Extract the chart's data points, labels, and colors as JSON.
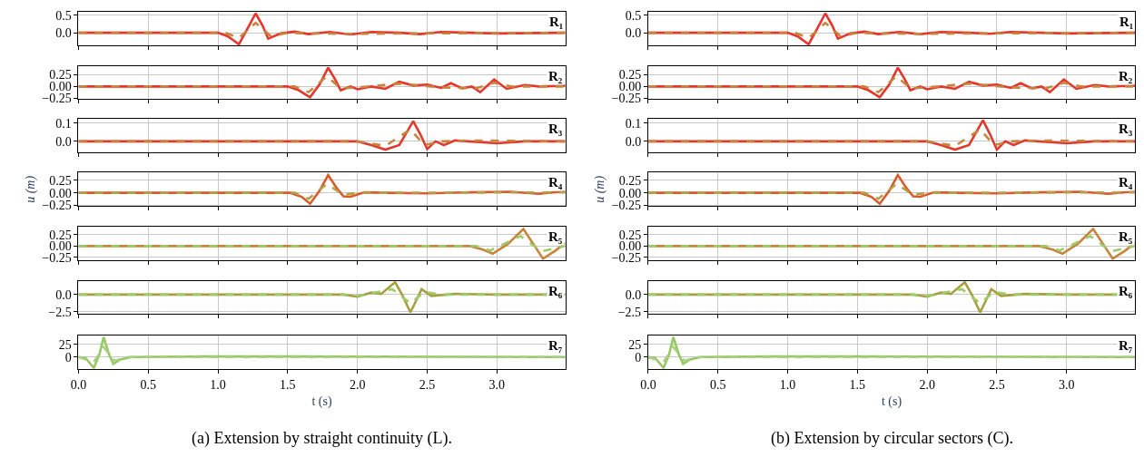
{
  "chart_data": [
    {
      "type": "line",
      "annotations": [
        "R₁"
      ],
      "xlim": [
        0,
        3.49
      ],
      "xticks": [
        0.0,
        0.5,
        1.0,
        1.5,
        2.0,
        2.5,
        3.0
      ],
      "ylim": [
        -0.36,
        0.6
      ],
      "yticks": [
        {
          "value": 0,
          "label": "0.0"
        },
        0.5
      ],
      "grid": true,
      "tick_labels": "y",
      "series": [
        {
          "color": "#e8352a",
          "line_style": "solid",
          "x": [
            0,
            1.0,
            1.07,
            1.15,
            1.21,
            1.27,
            1.32,
            1.36,
            1.45,
            1.55,
            1.65,
            1.8,
            1.95,
            2.1,
            2.3,
            2.45,
            2.6,
            3.0,
            3.49
          ],
          "values": [
            0,
            0,
            -0.1,
            -0.33,
            0.1,
            0.55,
            0.2,
            -0.17,
            -0.02,
            0.03,
            -0.04,
            0.02,
            -0.05,
            0.02,
            0.0,
            -0.04,
            0.02,
            -0.02,
            0
          ]
        },
        {
          "color": "#c8843c",
          "line_style": "dashed",
          "x": [
            0,
            1.05,
            1.15,
            1.27,
            1.38,
            1.5,
            1.65,
            1.95,
            2.45,
            3.49
          ],
          "values": [
            0,
            0,
            -0.15,
            0.28,
            -0.1,
            0,
            -0.02,
            -0.03,
            -0.02,
            0
          ]
        }
      ]
    },
    {
      "type": "line",
      "annotations": [
        "R₂"
      ],
      "xlim": [
        0,
        3.49
      ],
      "xticks": [
        0.0,
        0.5,
        1.0,
        1.5,
        2.0,
        2.5,
        3.0
      ],
      "ylim": [
        -0.26,
        0.44
      ],
      "yticks": [
        {
          "value": -0.25,
          "label": "−0.25"
        },
        {
          "value": 0,
          "label": "0.00"
        },
        0.25
      ],
      "grid": true,
      "tick_labels": "y",
      "series": [
        {
          "color": "#e8352a",
          "line_style": "solid",
          "x": [
            0,
            1.5,
            1.58,
            1.66,
            1.73,
            1.79,
            1.84,
            1.88,
            1.95,
            2.0,
            2.1,
            2.2,
            2.3,
            2.4,
            2.5,
            2.6,
            2.67,
            2.75,
            2.82,
            2.88,
            2.98,
            3.07,
            3.2,
            3.3,
            3.49
          ],
          "values": [
            0,
            0,
            -0.08,
            -0.23,
            0.05,
            0.4,
            0.15,
            -0.08,
            0.0,
            -0.06,
            0.0,
            -0.05,
            0.1,
            0.02,
            0.04,
            -0.03,
            0.07,
            -0.04,
            0.0,
            -0.12,
            0.15,
            -0.05,
            0.03,
            0.0,
            0.02
          ]
        },
        {
          "color": "#c8843c",
          "line_style": "dashed",
          "x": [
            0,
            1.55,
            1.65,
            1.78,
            1.88,
            2.0,
            2.3,
            2.6,
            2.85,
            2.98,
            3.1,
            3.49
          ],
          "values": [
            0,
            0,
            -0.12,
            0.22,
            -0.04,
            -0.02,
            0.06,
            -0.02,
            -0.04,
            0.08,
            0.0,
            0.0
          ]
        }
      ]
    },
    {
      "type": "line",
      "annotations": [
        "R₃"
      ],
      "xlim": [
        0,
        3.49
      ],
      "xticks": [
        0.0,
        0.5,
        1.0,
        1.5,
        2.0,
        2.5,
        3.0
      ],
      "ylim": [
        -0.058,
        0.121
      ],
      "yticks": [
        {
          "value": 0,
          "label": "0.0"
        },
        0.1
      ],
      "grid": true,
      "tick_labels": "y",
      "series": [
        {
          "color": "#e03a2c",
          "line_style": "solid",
          "x": [
            0,
            2.0,
            2.1,
            2.2,
            2.3,
            2.4,
            2.45,
            2.5,
            2.56,
            2.62,
            2.7,
            3.0,
            3.2,
            3.49
          ],
          "values": [
            0,
            0,
            -0.02,
            -0.045,
            -0.02,
            0.11,
            0.04,
            -0.042,
            0.0,
            -0.02,
            0.005,
            -0.01,
            0.0,
            0.0
          ]
        },
        {
          "color": "#c8843c",
          "line_style": "dashed",
          "x": [
            0,
            2.0,
            2.2,
            2.38,
            2.48,
            2.6,
            2.8,
            3.49
          ],
          "values": [
            0,
            0,
            -0.025,
            0.065,
            -0.02,
            0,
            0.005,
            0
          ]
        }
      ]
    },
    {
      "type": "line",
      "ylabel": "u (m)",
      "annotations": [
        "R₄"
      ],
      "xlim": [
        0,
        3.49
      ],
      "xticks": [
        0.0,
        0.5,
        1.0,
        1.5,
        2.0,
        2.5,
        3.0
      ],
      "ylim": [
        -0.27,
        0.41
      ],
      "yticks": [
        {
          "value": -0.25,
          "label": "−0.25"
        },
        {
          "value": 0,
          "label": "0.00"
        },
        0.25
      ],
      "grid": true,
      "tick_labels": "y",
      "series": [
        {
          "color": "#d95a2a",
          "line_style": "solid",
          "x": [
            0,
            1.52,
            1.6,
            1.66,
            1.73,
            1.79,
            1.85,
            1.9,
            1.95,
            2.05,
            2.2,
            2.5,
            2.8,
            3.1,
            3.3,
            3.49
          ],
          "values": [
            0,
            0,
            -0.08,
            -0.22,
            0.05,
            0.36,
            0.1,
            -0.07,
            -0.08,
            0.01,
            0.0,
            -0.01,
            0.01,
            0.02,
            -0.02,
            0.03
          ]
        },
        {
          "color": "#b5a04a",
          "line_style": "dashed",
          "x": [
            0,
            1.55,
            1.65,
            1.78,
            1.9,
            2.0,
            3.49
          ],
          "values": [
            0,
            0,
            -0.12,
            0.18,
            -0.04,
            0,
            0.01
          ]
        }
      ]
    },
    {
      "type": "line",
      "annotations": [
        "R₅"
      ],
      "xlim": [
        0,
        3.49
      ],
      "xticks": [
        0.0,
        0.5,
        1.0,
        1.5,
        2.0,
        2.5,
        3.0
      ],
      "ylim": [
        -0.32,
        0.43
      ],
      "yticks": [
        {
          "value": -0.25,
          "label": "−0.25"
        },
        {
          "value": 0,
          "label": "0.00"
        },
        0.25
      ],
      "grid": true,
      "tick_labels": "y",
      "series": [
        {
          "color": "#c8843c",
          "line_style": "solid",
          "x": [
            0,
            2.8,
            2.9,
            2.97,
            3.08,
            3.19,
            3.26,
            3.33,
            3.42,
            3.49
          ],
          "values": [
            0,
            0,
            -0.08,
            -0.17,
            0.05,
            0.38,
            0.05,
            -0.28,
            -0.1,
            0.07
          ]
        },
        {
          "color": "#9ccc65",
          "line_style": "dashed",
          "x": [
            0,
            2.85,
            2.95,
            3.17,
            3.32,
            3.49
          ],
          "values": [
            0,
            0,
            -0.1,
            0.22,
            -0.12,
            0.0
          ]
        }
      ]
    },
    {
      "type": "line",
      "annotations": [
        "R₆"
      ],
      "xlim": [
        0,
        3.49
      ],
      "xticks": [
        0.0,
        0.5,
        1.0,
        1.5,
        2.0,
        2.5,
        3.0
      ],
      "ylim": [
        -2.8,
        2.0
      ],
      "yticks": [
        {
          "value": -2.5,
          "label": "−2.5"
        },
        {
          "value": 0,
          "label": "0.0"
        }
      ],
      "grid": true,
      "tick_labels": "y",
      "series": [
        {
          "color": "#a8a040",
          "line_style": "solid",
          "x": [
            0,
            1.9,
            2.0,
            2.1,
            2.17,
            2.27,
            2.32,
            2.38,
            2.46,
            2.53,
            2.7,
            3.0,
            3.49
          ],
          "values": [
            0,
            0,
            -0.3,
            0.3,
            0.1,
            1.8,
            0.0,
            -2.6,
            0.8,
            -0.2,
            0.1,
            0.0,
            0.0
          ]
        },
        {
          "color": "#9ccc65",
          "line_style": "dashed",
          "x": [
            0,
            1.9,
            2.0,
            2.1,
            2.25,
            2.38,
            2.48,
            2.6,
            3.49
          ],
          "values": [
            0,
            0,
            -0.2,
            0.2,
            0.8,
            -1.3,
            0.4,
            0,
            0
          ]
        }
      ]
    },
    {
      "type": "line",
      "xlabel": "t (s)",
      "annotations": [
        "R₇",
        "(a) Extension by straight continuity (L)."
      ],
      "xlim": [
        0,
        3.49
      ],
      "xticks": [
        {
          "value": 0,
          "label": "0.0"
        },
        0.5,
        {
          "value": 1,
          "label": "1.0"
        },
        1.5,
        {
          "value": 2,
          "label": "2.0"
        },
        2.5,
        {
          "value": 3,
          "label": "3.0"
        }
      ],
      "ylim": [
        -24,
        44
      ],
      "yticks": [
        0,
        25
      ],
      "grid": true,
      "series": [
        {
          "color": "#96c864",
          "line_style": "solid",
          "x": [
            0,
            0.05,
            0.11,
            0.15,
            0.18,
            0.22,
            0.25,
            0.3,
            0.38,
            0.9,
            1.5,
            3.49
          ],
          "values": [
            0,
            -2,
            -22,
            5,
            40,
            5,
            -14,
            -5,
            0,
            1,
            1,
            0
          ]
        },
        {
          "color": "#a8d080",
          "line_style": "dashed",
          "x": [
            0,
            0.11,
            0.18,
            0.26,
            0.35,
            3.49
          ],
          "values": [
            0,
            -10,
            20,
            -8,
            0,
            0
          ]
        }
      ]
    },
    {
      "type": "line",
      "annotations": [
        "R₁"
      ],
      "xlim": [
        0,
        3.49
      ],
      "xticks": [
        0.0,
        0.5,
        1.0,
        1.5,
        2.0,
        2.5,
        3.0
      ],
      "ylim": [
        -0.36,
        0.6
      ],
      "yticks": [
        {
          "value": 0,
          "label": "0.0"
        },
        0.5
      ],
      "grid": true,
      "tick_labels": "y",
      "series": [
        {
          "color": "#e8352a",
          "line_style": "solid",
          "x": [
            0,
            1.0,
            1.07,
            1.15,
            1.21,
            1.27,
            1.32,
            1.36,
            1.45,
            1.55,
            1.65,
            1.8,
            1.95,
            2.1,
            2.3,
            2.45,
            2.6,
            3.0,
            3.49
          ],
          "values": [
            0,
            0,
            -0.1,
            -0.33,
            0.1,
            0.55,
            0.2,
            -0.17,
            -0.02,
            0.03,
            -0.04,
            0.02,
            -0.04,
            0.02,
            0.0,
            -0.03,
            0.02,
            -0.02,
            0
          ]
        },
        {
          "color": "#c8843c",
          "line_style": "dashed",
          "x": [
            0,
            1.05,
            1.15,
            1.27,
            1.38,
            1.5,
            1.65,
            1.95,
            2.45,
            3.49
          ],
          "values": [
            0,
            0,
            -0.15,
            0.28,
            -0.1,
            0,
            -0.02,
            -0.03,
            -0.02,
            0
          ]
        }
      ]
    },
    {
      "type": "line",
      "annotations": [
        "R₂"
      ],
      "xlim": [
        0,
        3.49
      ],
      "xticks": [
        0.0,
        0.5,
        1.0,
        1.5,
        2.0,
        2.5,
        3.0
      ],
      "ylim": [
        -0.26,
        0.44
      ],
      "yticks": [
        {
          "value": -0.25,
          "label": "−0.25"
        },
        {
          "value": 0,
          "label": "0.00"
        },
        0.25
      ],
      "grid": true,
      "tick_labels": "y",
      "series": [
        {
          "color": "#e8352a",
          "line_style": "solid",
          "x": [
            0,
            1.5,
            1.58,
            1.66,
            1.73,
            1.79,
            1.84,
            1.88,
            1.95,
            2.0,
            2.1,
            2.2,
            2.3,
            2.4,
            2.5,
            2.6,
            2.67,
            2.75,
            2.82,
            2.88,
            2.98,
            3.07,
            3.2,
            3.3,
            3.49
          ],
          "values": [
            0,
            0,
            -0.08,
            -0.23,
            0.05,
            0.4,
            0.15,
            -0.08,
            0.0,
            -0.06,
            0.0,
            -0.05,
            0.1,
            0.02,
            0.04,
            -0.03,
            0.07,
            -0.04,
            0.0,
            -0.12,
            0.15,
            -0.05,
            0.03,
            0.0,
            0.02
          ]
        },
        {
          "color": "#c8843c",
          "line_style": "dashed",
          "x": [
            0,
            1.55,
            1.65,
            1.78,
            1.88,
            2.0,
            2.3,
            2.6,
            2.85,
            2.98,
            3.1,
            3.49
          ],
          "values": [
            0,
            0,
            -0.12,
            0.22,
            -0.04,
            -0.02,
            0.06,
            -0.02,
            -0.04,
            0.08,
            0.0,
            0.0
          ]
        }
      ]
    },
    {
      "type": "line",
      "annotations": [
        "R₃"
      ],
      "xlim": [
        0,
        3.49
      ],
      "xticks": [
        0.0,
        0.5,
        1.0,
        1.5,
        2.0,
        2.5,
        3.0
      ],
      "ylim": [
        -0.058,
        0.121
      ],
      "yticks": [
        {
          "value": 0,
          "label": "0.0"
        },
        0.1
      ],
      "grid": true,
      "tick_labels": "y",
      "series": [
        {
          "color": "#e03a2c",
          "line_style": "solid",
          "x": [
            0,
            2.0,
            2.1,
            2.2,
            2.3,
            2.4,
            2.45,
            2.5,
            2.56,
            2.62,
            2.7,
            3.0,
            3.2,
            3.49
          ],
          "values": [
            0,
            0,
            -0.02,
            -0.045,
            -0.02,
            0.115,
            0.04,
            -0.045,
            0.0,
            -0.02,
            0.005,
            -0.01,
            0.0,
            0.0
          ]
        },
        {
          "color": "#c8843c",
          "line_style": "dashed",
          "x": [
            0,
            2.0,
            2.2,
            2.38,
            2.48,
            2.6,
            2.8,
            3.49
          ],
          "values": [
            0,
            0,
            -0.025,
            0.065,
            -0.02,
            0,
            0.005,
            0
          ]
        }
      ]
    },
    {
      "type": "line",
      "ylabel": "u (m)",
      "annotations": [
        "R₄"
      ],
      "xlim": [
        0,
        3.49
      ],
      "xticks": [
        0.0,
        0.5,
        1.0,
        1.5,
        2.0,
        2.5,
        3.0
      ],
      "ylim": [
        -0.27,
        0.41
      ],
      "yticks": [
        {
          "value": -0.25,
          "label": "−0.25"
        },
        {
          "value": 0,
          "label": "0.00"
        },
        0.25
      ],
      "grid": true,
      "tick_labels": "y",
      "series": [
        {
          "color": "#d95a2a",
          "line_style": "solid",
          "x": [
            0,
            1.52,
            1.6,
            1.66,
            1.73,
            1.79,
            1.85,
            1.9,
            1.95,
            2.05,
            2.2,
            2.5,
            2.8,
            3.1,
            3.3,
            3.49
          ],
          "values": [
            0,
            0,
            -0.08,
            -0.22,
            0.05,
            0.36,
            0.1,
            -0.07,
            -0.08,
            0.01,
            0.0,
            -0.01,
            0.01,
            0.02,
            -0.02,
            0.03
          ]
        },
        {
          "color": "#b5a04a",
          "line_style": "dashed",
          "x": [
            0,
            1.55,
            1.65,
            1.78,
            1.9,
            2.0,
            3.49
          ],
          "values": [
            0,
            0,
            -0.12,
            0.18,
            -0.04,
            0,
            0.01
          ]
        }
      ]
    },
    {
      "type": "line",
      "annotations": [
        "R₅"
      ],
      "xlim": [
        0,
        3.49
      ],
      "xticks": [
        0.0,
        0.5,
        1.0,
        1.5,
        2.0,
        2.5,
        3.0
      ],
      "ylim": [
        -0.32,
        0.43
      ],
      "yticks": [
        {
          "value": -0.25,
          "label": "−0.25"
        },
        {
          "value": 0,
          "label": "0.00"
        },
        0.25
      ],
      "grid": true,
      "tick_labels": "y",
      "series": [
        {
          "color": "#c8843c",
          "line_style": "solid",
          "x": [
            0,
            2.8,
            2.9,
            2.97,
            3.08,
            3.19,
            3.26,
            3.33,
            3.42,
            3.49
          ],
          "values": [
            0,
            0,
            -0.08,
            -0.17,
            0.05,
            0.38,
            0.05,
            -0.28,
            -0.1,
            0.07
          ]
        },
        {
          "color": "#9ccc65",
          "line_style": "dashed",
          "x": [
            0,
            2.85,
            2.95,
            3.17,
            3.32,
            3.49
          ],
          "values": [
            0,
            0,
            -0.1,
            0.22,
            -0.12,
            0.0
          ]
        }
      ]
    },
    {
      "type": "line",
      "annotations": [
        "R₆"
      ],
      "xlim": [
        0,
        3.49
      ],
      "xticks": [
        0.0,
        0.5,
        1.0,
        1.5,
        2.0,
        2.5,
        3.0
      ],
      "ylim": [
        -2.8,
        2.0
      ],
      "yticks": [
        {
          "value": -2.5,
          "label": "−2.5"
        },
        {
          "value": 0,
          "label": "0.0"
        }
      ],
      "grid": true,
      "tick_labels": "y",
      "series": [
        {
          "color": "#a8a040",
          "line_style": "solid",
          "x": [
            0,
            1.9,
            2.0,
            2.1,
            2.17,
            2.27,
            2.32,
            2.38,
            2.46,
            2.53,
            2.7,
            3.0,
            3.49
          ],
          "values": [
            0,
            0,
            -0.3,
            0.3,
            0.1,
            1.8,
            0.0,
            -2.6,
            0.8,
            -0.2,
            0.1,
            0.0,
            0.0
          ]
        },
        {
          "color": "#9ccc65",
          "line_style": "dashed",
          "x": [
            0,
            1.9,
            2.0,
            2.1,
            2.25,
            2.38,
            2.48,
            2.6,
            3.49
          ],
          "values": [
            0,
            0,
            -0.2,
            0.2,
            0.8,
            -1.3,
            0.4,
            0,
            0
          ]
        }
      ]
    },
    {
      "type": "line",
      "xlabel": "t (s)",
      "annotations": [
        "R₇",
        "(b) Extension by circular sectors (C)."
      ],
      "xlim": [
        0,
        3.49
      ],
      "xticks": [
        {
          "value": 0,
          "label": "0.0"
        },
        0.5,
        {
          "value": 1,
          "label": "1.0"
        },
        1.5,
        {
          "value": 2,
          "label": "2.0"
        },
        2.5,
        {
          "value": 3,
          "label": "3.0"
        }
      ],
      "ylim": [
        -24,
        44
      ],
      "yticks": [
        0,
        25
      ],
      "grid": true,
      "series": [
        {
          "color": "#96c864",
          "line_style": "solid",
          "x": [
            0,
            0.05,
            0.11,
            0.15,
            0.18,
            0.22,
            0.25,
            0.3,
            0.38,
            0.9,
            1.5,
            3.49
          ],
          "values": [
            0,
            -2,
            -22,
            5,
            40,
            5,
            -14,
            -5,
            0,
            1,
            1,
            0
          ]
        },
        {
          "color": "#a8d080",
          "line_style": "dashed",
          "x": [
            0,
            0.11,
            0.18,
            0.26,
            0.35,
            3.49
          ],
          "values": [
            0,
            -10,
            20,
            -8,
            0,
            0
          ]
        }
      ]
    }
  ]
}
